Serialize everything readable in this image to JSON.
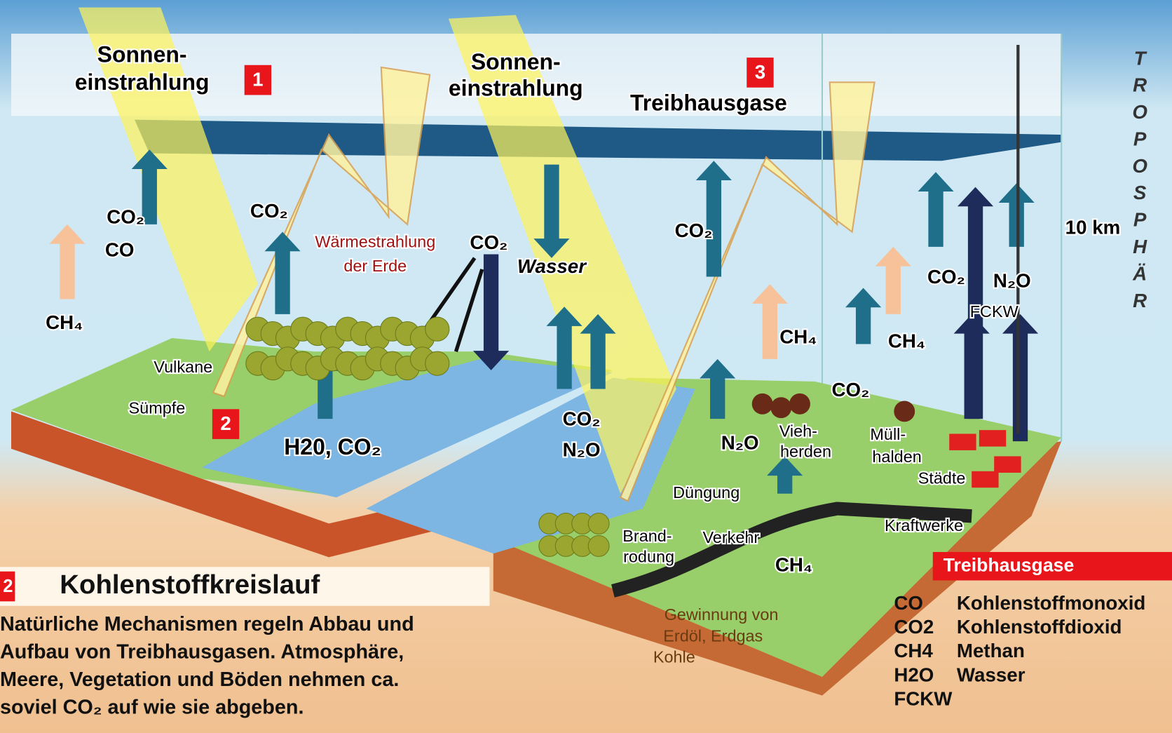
{
  "labels": [
    "Sonnen-",
    "einstrahlung",
    "Sonnen-",
    "einstrahlung",
    "Treibhausgase",
    "10 km",
    "CO₂",
    "CO",
    "CO₂",
    "Wärmestrahlung",
    "der Erde",
    "CO₂",
    "Wasser",
    "CO₂",
    "CH₄",
    "Vulkane",
    "Sümpfe",
    "H20, CO₂",
    "CO₂",
    "N₂O",
    "CH₄",
    "CH₄",
    "CO₂",
    "CO₂",
    "N₂O",
    "FCKW",
    "N₂O",
    "Vieh-",
    "herden",
    "Müll-",
    "halden",
    "Städte",
    "Düngung",
    "Brand-",
    "rodung",
    "Verkehr",
    "Kraftwerke",
    "CH₄",
    "Gewinnung von",
    "Erdöl, Erdgas",
    "Kohle"
  ],
  "markers": [
    "1",
    "3",
    "2",
    "2"
  ],
  "troposphere": "TROPOSPHÄR",
  "info": {
    "title": "Kohlenstoffkreislauf",
    "lines": [
      "Natürliche Mechanismen regeln Abbau und",
      "Aufbau von Treibhausgasen. Atmosphäre,",
      "Meere, Vegetation und Böden nehmen ca.",
      "soviel CO₂ auf wie sie abgeben."
    ]
  },
  "legend": {
    "title": "Treibhausgase",
    "rows": [
      [
        "CO",
        "Kohlenstoffmonoxid"
      ],
      [
        "CO2",
        "Kohlenstoffdioxid"
      ],
      [
        "CH4",
        "Methan"
      ],
      [
        "H2O",
        "Wasser"
      ],
      [
        "FCKW"
      ]
    ]
  }
}
